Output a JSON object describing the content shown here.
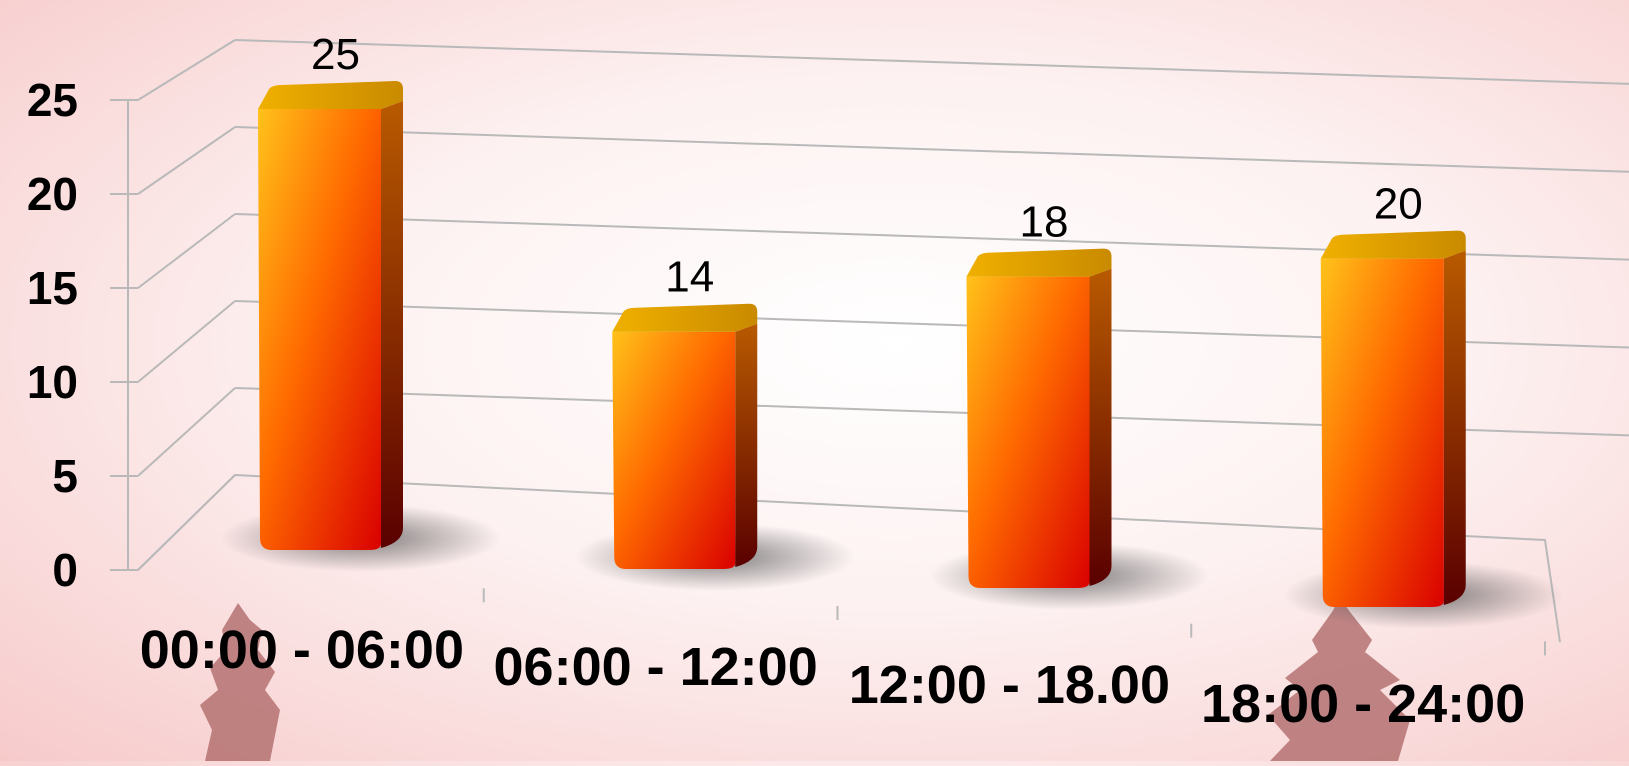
{
  "chart_data": {
    "type": "bar",
    "style": "3d-column",
    "categories": [
      "00:00 - 06:00",
      "06:00 - 12:00",
      "12:00 - 18.00",
      "18:00 - 24:00"
    ],
    "values": [
      25,
      14,
      18,
      20
    ],
    "data_labels": [
      "25",
      "14",
      "18",
      "20"
    ],
    "ylim": [
      0,
      25
    ],
    "yticks": [
      "0",
      "5",
      "10",
      "15",
      "20",
      "25"
    ],
    "grid": true,
    "legend": "none",
    "title": "",
    "xlabel": "",
    "ylabel": ""
  },
  "colors": {
    "bar_top": "#e8a000",
    "bar_light": "#ffc21a",
    "bar_mid": "#ff6a00",
    "bar_dark": "#d90000",
    "side_dark": "#6b0000",
    "grid": "#b9b9b9",
    "watermark": "#b06a6a"
  }
}
